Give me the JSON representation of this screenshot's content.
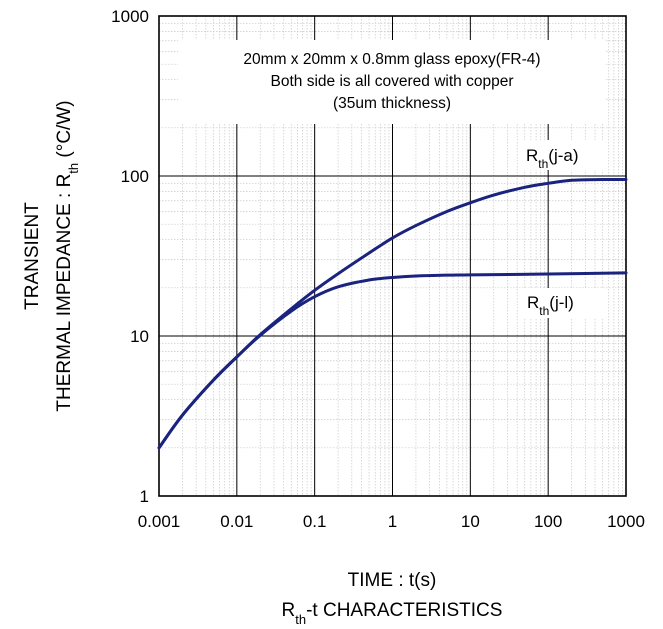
{
  "chart_data": {
    "type": "line",
    "title": "",
    "caption": {
      "prefix": "R",
      "sub": "th",
      "suffix": "-t CHARACTERISTICS"
    },
    "xlabel": "TIME : t(s)",
    "ylabel": {
      "line1": "TRANSIENT",
      "line2_prefix": "THERMAL IMPEDANCE : R",
      "line2_sub": "th",
      "line2_suffix": " (°C/W)"
    },
    "x_scale": "log",
    "y_scale": "log",
    "xlim": [
      0.001,
      1000
    ],
    "ylim": [
      1,
      1000
    ],
    "x_ticks": [
      "0.001",
      "0.01",
      "0.1",
      "1",
      "10",
      "100",
      "1000"
    ],
    "y_ticks": [
      "1",
      "10",
      "100",
      "1000"
    ],
    "grid": true,
    "annotation": [
      "20mm x 20mm x 0.8mm glass epoxy(FR-4)",
      "Both side is all covered with copper",
      "(35um thickness)"
    ],
    "line_color": "#1a237e",
    "series": [
      {
        "name": "Rth(j-a)",
        "label_prefix": "R",
        "label_sub": "th",
        "label_suffix": "(j-a)",
        "x": [
          0.001,
          0.002,
          0.005,
          0.01,
          0.02,
          0.05,
          0.1,
          0.2,
          0.5,
          1,
          2,
          5,
          10,
          20,
          50,
          100,
          200,
          500,
          1000
        ],
        "y": [
          2.0,
          3.2,
          5.3,
          7.4,
          10.2,
          14.8,
          19.3,
          24.5,
          33,
          41,
          49,
          60,
          68,
          76,
          85,
          90,
          94,
          95,
          95
        ]
      },
      {
        "name": "Rth(j-l)",
        "label_prefix": "R",
        "label_sub": "th",
        "label_suffix": "(j-l)",
        "x": [
          0.001,
          0.002,
          0.005,
          0.01,
          0.02,
          0.05,
          0.1,
          0.2,
          0.5,
          1,
          2,
          5,
          10,
          100,
          1000
        ],
        "y": [
          2.0,
          3.2,
          5.3,
          7.4,
          10.1,
          14.3,
          17.6,
          20.3,
          22.4,
          23.2,
          23.7,
          24.0,
          24.1,
          24.4,
          24.8
        ]
      }
    ]
  }
}
